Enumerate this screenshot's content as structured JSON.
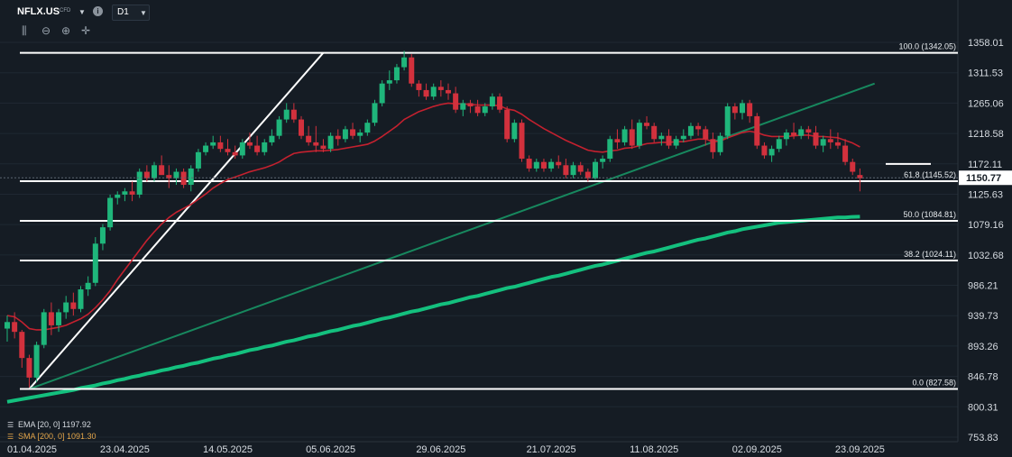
{
  "toolbar": {
    "symbol": "NFLX.US",
    "instrument_type": "CFD",
    "timeframe": "D1",
    "tools": [
      {
        "icon": "indicators-icon",
        "glyph": "⫼"
      },
      {
        "icon": "zoom-out-icon",
        "glyph": "⊖"
      },
      {
        "icon": "zoom-in-icon",
        "glyph": "⊕"
      },
      {
        "icon": "crosshair-icon",
        "glyph": "✛"
      }
    ]
  },
  "legend": {
    "ema": "EMA [20, 0] 1197.92",
    "sma": "SMA [200, 0] 1091.30"
  },
  "colors": {
    "background": "#151c24",
    "up_candle": "#1fb67b",
    "down_candle": "#d2313d",
    "ema": "#c4212f",
    "sma": "#14c07e",
    "trendline": "#17885e",
    "fib_lines": "#ffffff",
    "price_tag": "#ffffff"
  },
  "chart_data": {
    "type": "candlestick",
    "symbol": "NFLX.US",
    "timeframe": "D1",
    "current_price": 1150.77,
    "ylim": [
      753.83,
      1358.01
    ],
    "y_ticks": [
      1358.01,
      1311.53,
      1265.06,
      1218.58,
      1172.11,
      1125.63,
      1079.16,
      1032.68,
      986.21,
      939.73,
      893.26,
      846.78,
      800.31,
      753.83
    ],
    "x_tick_labels": [
      "01.04.2025",
      "23.04.2025",
      "14.05.2025",
      "05.06.2025",
      "29.06.2025",
      "21.07.2025",
      "11.08.2025",
      "02.09.2025",
      "23.09.2025"
    ],
    "x_tick_positions": [
      0,
      16,
      30,
      44,
      59,
      74,
      88,
      102,
      116
    ],
    "fibonacci": [
      {
        "level": "100.0",
        "price": 1342.05,
        "label": "100.0 (1342.05)"
      },
      {
        "level": "61.8",
        "price": 1145.52,
        "label": "61.8 (1145.52)"
      },
      {
        "level": "50.0",
        "price": 1084.81,
        "label": "50.0 (1084.81)"
      },
      {
        "level": "38.2",
        "price": 1024.11,
        "label": "38.2 (1024.11)"
      },
      {
        "level": "0.0",
        "price": 827.58,
        "label": "0.0 (827.58)"
      }
    ],
    "candles": [
      [
        920,
        940,
        900,
        930
      ],
      [
        930,
        945,
        905,
        915
      ],
      [
        915,
        918,
        860,
        875
      ],
      [
        875,
        880,
        830,
        845
      ],
      [
        845,
        900,
        838,
        895
      ],
      [
        895,
        950,
        890,
        945
      ],
      [
        945,
        960,
        910,
        925
      ],
      [
        925,
        950,
        915,
        945
      ],
      [
        945,
        970,
        935,
        960
      ],
      [
        960,
        975,
        940,
        950
      ],
      [
        950,
        985,
        945,
        980
      ],
      [
        980,
        1000,
        970,
        990
      ],
      [
        990,
        1060,
        985,
        1050
      ],
      [
        1050,
        1080,
        1040,
        1075
      ],
      [
        1075,
        1125,
        1070,
        1120
      ],
      [
        1120,
        1130,
        1110,
        1125
      ],
      [
        1125,
        1135,
        1115,
        1130
      ],
      [
        1130,
        1145,
        1115,
        1125
      ],
      [
        1125,
        1165,
        1120,
        1160
      ],
      [
        1160,
        1170,
        1145,
        1150
      ],
      [
        1150,
        1175,
        1145,
        1170
      ],
      [
        1170,
        1185,
        1160,
        1155
      ],
      [
        1155,
        1170,
        1135,
        1150
      ],
      [
        1150,
        1165,
        1140,
        1160
      ],
      [
        1160,
        1165,
        1135,
        1140
      ],
      [
        1140,
        1170,
        1130,
        1165
      ],
      [
        1165,
        1195,
        1160,
        1190
      ],
      [
        1190,
        1205,
        1185,
        1200
      ],
      [
        1200,
        1215,
        1195,
        1205
      ],
      [
        1205,
        1215,
        1190,
        1195
      ],
      [
        1195,
        1210,
        1185,
        1190
      ],
      [
        1190,
        1200,
        1180,
        1185
      ],
      [
        1185,
        1210,
        1180,
        1205
      ],
      [
        1205,
        1220,
        1195,
        1200
      ],
      [
        1200,
        1215,
        1185,
        1190
      ],
      [
        1190,
        1210,
        1185,
        1205
      ],
      [
        1205,
        1225,
        1200,
        1215
      ],
      [
        1215,
        1245,
        1210,
        1240
      ],
      [
        1240,
        1265,
        1235,
        1255
      ],
      [
        1255,
        1265,
        1235,
        1240
      ],
      [
        1240,
        1245,
        1210,
        1215
      ],
      [
        1215,
        1230,
        1200,
        1205
      ],
      [
        1205,
        1230,
        1190,
        1200
      ],
      [
        1200,
        1210,
        1190,
        1195
      ],
      [
        1195,
        1220,
        1190,
        1215
      ],
      [
        1215,
        1225,
        1200,
        1210
      ],
      [
        1210,
        1230,
        1205,
        1225
      ],
      [
        1225,
        1235,
        1210,
        1215
      ],
      [
        1215,
        1225,
        1205,
        1220
      ],
      [
        1220,
        1240,
        1215,
        1235
      ],
      [
        1235,
        1270,
        1230,
        1265
      ],
      [
        1265,
        1300,
        1260,
        1295
      ],
      [
        1295,
        1315,
        1285,
        1300
      ],
      [
        1300,
        1325,
        1295,
        1320
      ],
      [
        1320,
        1345,
        1315,
        1335
      ],
      [
        1335,
        1340,
        1290,
        1295
      ],
      [
        1295,
        1300,
        1275,
        1285
      ],
      [
        1285,
        1295,
        1270,
        1275
      ],
      [
        1275,
        1295,
        1270,
        1290
      ],
      [
        1290,
        1300,
        1275,
        1285
      ],
      [
        1285,
        1295,
        1270,
        1280
      ],
      [
        1280,
        1290,
        1250,
        1255
      ],
      [
        1255,
        1270,
        1245,
        1265
      ],
      [
        1265,
        1270,
        1250,
        1260
      ],
      [
        1260,
        1270,
        1245,
        1250
      ],
      [
        1250,
        1265,
        1245,
        1260
      ],
      [
        1260,
        1280,
        1255,
        1275
      ],
      [
        1275,
        1280,
        1250,
        1255
      ],
      [
        1255,
        1260,
        1205,
        1210
      ],
      [
        1210,
        1240,
        1205,
        1235
      ],
      [
        1235,
        1240,
        1175,
        1180
      ],
      [
        1180,
        1185,
        1160,
        1165
      ],
      [
        1165,
        1180,
        1160,
        1175
      ],
      [
        1175,
        1180,
        1160,
        1165
      ],
      [
        1165,
        1180,
        1160,
        1175
      ],
      [
        1175,
        1185,
        1165,
        1170
      ],
      [
        1170,
        1180,
        1150,
        1155
      ],
      [
        1155,
        1175,
        1150,
        1170
      ],
      [
        1170,
        1175,
        1155,
        1160
      ],
      [
        1160,
        1165,
        1145,
        1150
      ],
      [
        1150,
        1180,
        1148,
        1175
      ],
      [
        1175,
        1185,
        1165,
        1180
      ],
      [
        1180,
        1215,
        1175,
        1210
      ],
      [
        1210,
        1225,
        1195,
        1205
      ],
      [
        1205,
        1230,
        1200,
        1225
      ],
      [
        1225,
        1240,
        1195,
        1200
      ],
      [
        1200,
        1240,
        1195,
        1235
      ],
      [
        1235,
        1245,
        1225,
        1230
      ],
      [
        1230,
        1235,
        1205,
        1210
      ],
      [
        1210,
        1220,
        1200,
        1215
      ],
      [
        1215,
        1225,
        1195,
        1200
      ],
      [
        1200,
        1215,
        1195,
        1210
      ],
      [
        1210,
        1225,
        1205,
        1215
      ],
      [
        1215,
        1235,
        1210,
        1230
      ],
      [
        1230,
        1235,
        1215,
        1225
      ],
      [
        1225,
        1230,
        1200,
        1210
      ],
      [
        1210,
        1220,
        1180,
        1190
      ],
      [
        1190,
        1220,
        1185,
        1215
      ],
      [
        1215,
        1265,
        1210,
        1260
      ],
      [
        1260,
        1265,
        1240,
        1250
      ],
      [
        1250,
        1270,
        1240,
        1265
      ],
      [
        1265,
        1270,
        1235,
        1245
      ],
      [
        1245,
        1250,
        1195,
        1200
      ],
      [
        1200,
        1205,
        1180,
        1185
      ],
      [
        1185,
        1200,
        1175,
        1195
      ],
      [
        1195,
        1215,
        1190,
        1210
      ],
      [
        1210,
        1225,
        1200,
        1220
      ],
      [
        1220,
        1235,
        1210,
        1215
      ],
      [
        1215,
        1230,
        1210,
        1225
      ],
      [
        1225,
        1230,
        1210,
        1220
      ],
      [
        1220,
        1230,
        1195,
        1200
      ],
      [
        1200,
        1215,
        1190,
        1210
      ],
      [
        1210,
        1225,
        1195,
        1205
      ],
      [
        1205,
        1220,
        1195,
        1200
      ],
      [
        1200,
        1210,
        1170,
        1175
      ],
      [
        1175,
        1180,
        1155,
        1160
      ],
      [
        1155,
        1165,
        1130,
        1150
      ]
    ],
    "ema_20": [
      940,
      938,
      930,
      920,
      918,
      918,
      920,
      922,
      925,
      930,
      935,
      942,
      952,
      964,
      978,
      995,
      1010,
      1025,
      1040,
      1055,
      1068,
      1080,
      1090,
      1098,
      1104,
      1110,
      1118,
      1126,
      1135,
      1142,
      1148,
      1152,
      1156,
      1160,
      1163,
      1166,
      1170,
      1175,
      1182,
      1188,
      1190,
      1191,
      1192,
      1192,
      1193,
      1194,
      1196,
      1198,
      1200,
      1202,
      1207,
      1214,
      1222,
      1230,
      1240,
      1246,
      1252,
      1256,
      1260,
      1263,
      1265,
      1264,
      1264,
      1263,
      1262,
      1262,
      1262,
      1261,
      1256,
      1254,
      1248,
      1240,
      1233,
      1226,
      1220,
      1214,
      1208,
      1203,
      1198,
      1193,
      1191,
      1190,
      1192,
      1193,
      1196,
      1197,
      1200,
      1203,
      1204,
      1205,
      1205,
      1206,
      1206,
      1208,
      1210,
      1210,
      1206,
      1207,
      1212,
      1216,
      1220,
      1222,
      1220,
      1216,
      1214,
      1214,
      1214,
      1215,
      1216,
      1216,
      1214,
      1214,
      1213,
      1212,
      1208,
      1204,
      1198
    ],
    "sma_200": [
      808,
      810,
      812,
      814,
      816,
      818,
      820,
      822,
      824,
      826,
      829,
      831,
      833,
      836,
      838,
      841,
      843,
      846,
      848,
      851,
      853,
      856,
      858,
      861,
      863,
      866,
      868,
      871,
      874,
      876,
      879,
      881,
      884,
      887,
      889,
      892,
      894,
      897,
      900,
      902,
      905,
      908,
      910,
      913,
      916,
      918,
      921,
      924,
      926,
      929,
      932,
      935,
      937,
      940,
      943,
      946,
      948,
      951,
      954,
      957,
      959,
      962,
      965,
      968,
      970,
      973,
      976,
      979,
      982,
      984,
      987,
      990,
      993,
      996,
      999,
      1001,
      1004,
      1007,
      1010,
      1013,
      1016,
      1018,
      1021,
      1024,
      1027,
      1030,
      1033,
      1036,
      1038,
      1041,
      1044,
      1047,
      1050,
      1053,
      1056,
      1058,
      1061,
      1064,
      1067,
      1069,
      1072,
      1074,
      1076,
      1078,
      1080,
      1082,
      1083,
      1084,
      1085,
      1086,
      1087,
      1088,
      1089,
      1090,
      1090,
      1091,
      1091.3
    ],
    "trendlines": [
      {
        "name": "rising-diagonal",
        "from": [
          3,
          827.58
        ],
        "to": [
          43,
          1342.05
        ]
      },
      {
        "name": "green-trendline",
        "from": [
          3,
          827.58
        ],
        "to": [
          118,
          1295
        ]
      }
    ]
  }
}
